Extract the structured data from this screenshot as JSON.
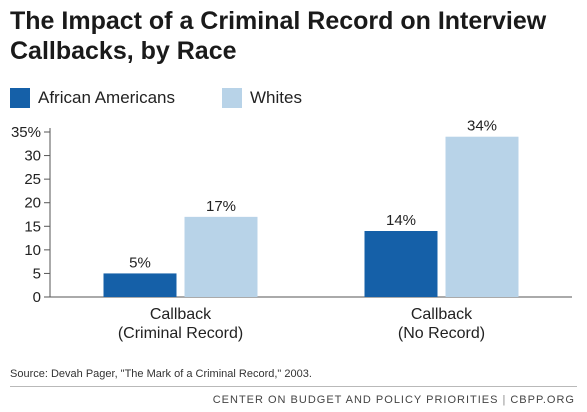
{
  "title": "The Impact of a Criminal Record on Interview Callbacks, by Race",
  "source": "Source: Devah Pager, \"The Mark of a Criminal Record,\" 2003.",
  "footer": {
    "org": "CENTER ON BUDGET AND POLICY PRIORITIES",
    "separator": "|",
    "site": "CBPP.ORG"
  },
  "colors": {
    "african_americans": "#1560a8",
    "whites": "#b8d3e8",
    "axis": "#555555"
  },
  "chart_data": {
    "type": "bar",
    "title": "The Impact of a Criminal Record on Interview Callbacks, by Race",
    "categories": [
      [
        "Callback",
        "(Criminal Record)"
      ],
      [
        "Callback",
        "(No Record)"
      ]
    ],
    "series": [
      {
        "name": "African Americans",
        "values": [
          5,
          14
        ],
        "labels": [
          "5%",
          "14%"
        ],
        "color": "#1560a8"
      },
      {
        "name": "Whites",
        "values": [
          17,
          34
        ],
        "labels": [
          "17%",
          "34%"
        ],
        "color": "#b8d3e8"
      }
    ],
    "y_ticks": [
      {
        "value": 0,
        "label": "0"
      },
      {
        "value": 5,
        "label": "5"
      },
      {
        "value": 10,
        "label": "10"
      },
      {
        "value": 15,
        "label": "15"
      },
      {
        "value": 20,
        "label": "20"
      },
      {
        "value": 25,
        "label": "25"
      },
      {
        "value": 30,
        "label": "30"
      },
      {
        "value": 35,
        "label": "35%"
      }
    ],
    "ylim": [
      0,
      35
    ],
    "grid": false,
    "legend_position": "top-left"
  }
}
